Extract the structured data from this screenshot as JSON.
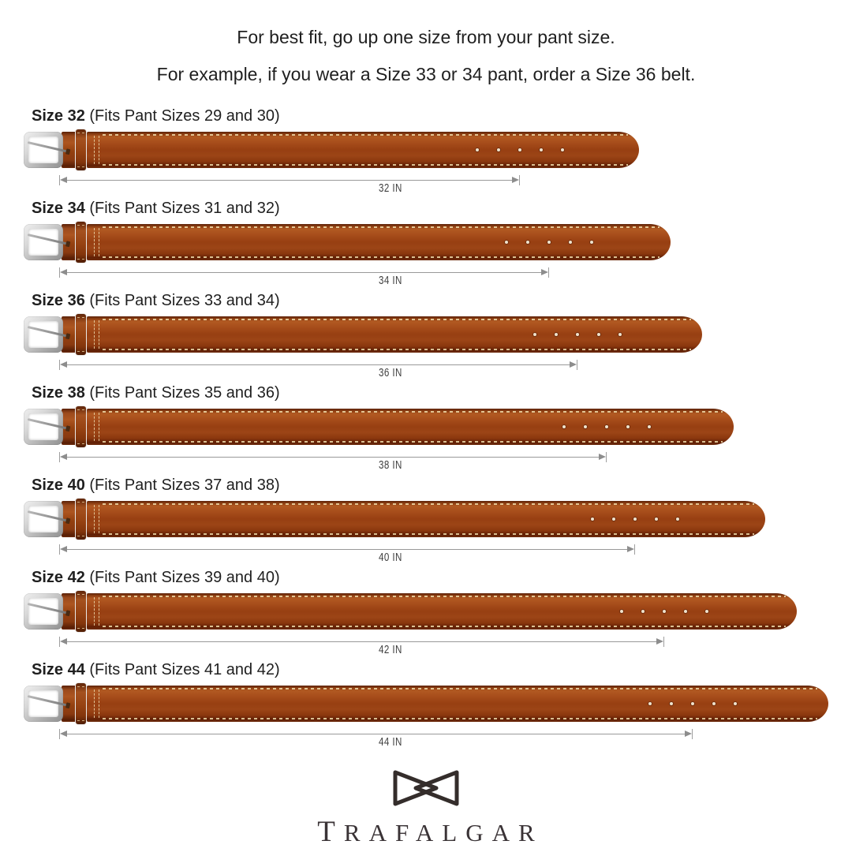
{
  "header": {
    "line1": "For best fit, go up one size from your pant size.",
    "line2": "For example, if you wear a Size 33 or 34 pant, order a Size 36 belt."
  },
  "rows": [
    {
      "size_label": "Size 32",
      "fits_label": "(Fits Pant Sizes 29 and 30)",
      "inches": 32,
      "measure_label": "32 IN"
    },
    {
      "size_label": "Size 34",
      "fits_label": "(Fits Pant Sizes 31 and 32)",
      "inches": 34,
      "measure_label": "34 IN"
    },
    {
      "size_label": "Size 36",
      "fits_label": "(Fits Pant Sizes 33 and 34)",
      "inches": 36,
      "measure_label": "36 IN"
    },
    {
      "size_label": "Size 38",
      "fits_label": "(Fits Pant Sizes 35 and 36)",
      "inches": 38,
      "measure_label": "38 IN"
    },
    {
      "size_label": "Size 40",
      "fits_label": "(Fits Pant Sizes 37 and 38)",
      "inches": 40,
      "measure_label": "40 IN"
    },
    {
      "size_label": "Size 42",
      "fits_label": "(Fits Pant Sizes 39 and 40)",
      "inches": 42,
      "measure_label": "42 IN"
    },
    {
      "size_label": "Size 44",
      "fits_label": "(Fits Pant Sizes 41 and 42)",
      "inches": 44,
      "measure_label": "44 IN"
    }
  ],
  "footer": {
    "brand": "TRAFALGAR",
    "logo_icon": "bowtie-icon"
  },
  "colors": {
    "leather": "#9a4314",
    "leather_light": "#b25a22",
    "leather_dark": "#5a2108",
    "stitch": "#ecd9ae",
    "buckle_silver": "#c6c6c6",
    "arrow_gray": "#979797",
    "text": "#1f1f1f",
    "brand_text": "#3a3336"
  }
}
